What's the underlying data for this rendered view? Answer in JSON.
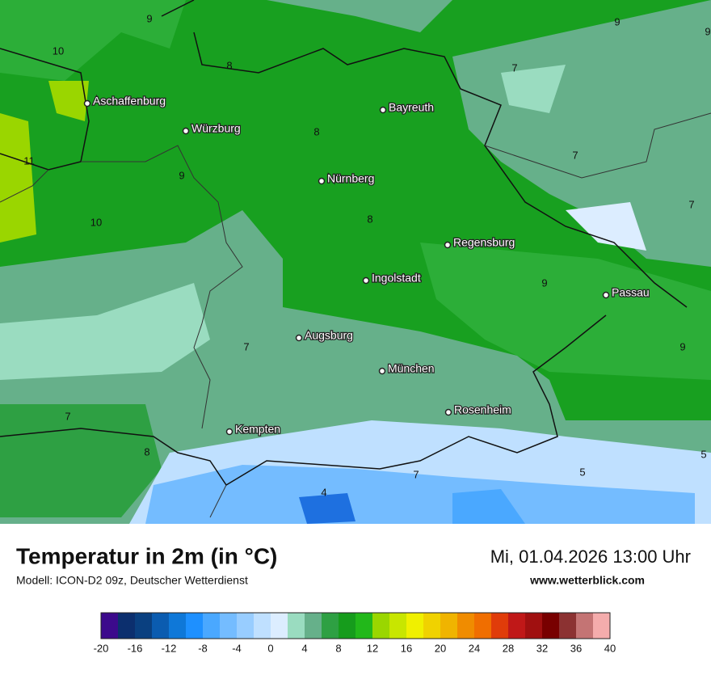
{
  "map": {
    "cities": [
      "Aschaffenburg",
      "Würzburg",
      "Bayreuth",
      "Nürnberg",
      "Regensburg",
      "Ingolstadt",
      "Passau",
      "Augsburg",
      "München",
      "Rosenheim",
      "Kempten"
    ],
    "labels": [
      9,
      10,
      8,
      8,
      7,
      9,
      9,
      11,
      9,
      7,
      10,
      8,
      7,
      9,
      7,
      9,
      7,
      8,
      4,
      7,
      5,
      5
    ]
  },
  "footer": {
    "title": "Temperatur in 2m (in °C)",
    "subtitle": "Modell: ICON-D2 09z, Deutscher Wetterdienst",
    "date": "Mi, 01.04.2026 13:00 Uhr",
    "website": "www.wetterblick.com"
  },
  "colorbar": {
    "ticks": [
      -20,
      -16,
      -12,
      -8,
      -4,
      0,
      4,
      8,
      12,
      16,
      20,
      24,
      28,
      32,
      36,
      40
    ],
    "colors": [
      "#3c0a8c",
      "#0c2f6e",
      "#0a4080",
      "#0b5cb0",
      "#0f78d8",
      "#1e90ff",
      "#4aa8ff",
      "#74bcff",
      "#98cdff",
      "#bfe0ff",
      "#dcedff",
      "#9adcc0",
      "#66b08a",
      "#2ea043",
      "#169c1c",
      "#22b81a",
      "#9ad600",
      "#c8e600",
      "#f0f000",
      "#f0d200",
      "#f0b400",
      "#f08c00",
      "#f06e00",
      "#e03c0a",
      "#c01818",
      "#a01010",
      "#780000",
      "#8c3232",
      "#c47474",
      "#f4acac"
    ]
  }
}
